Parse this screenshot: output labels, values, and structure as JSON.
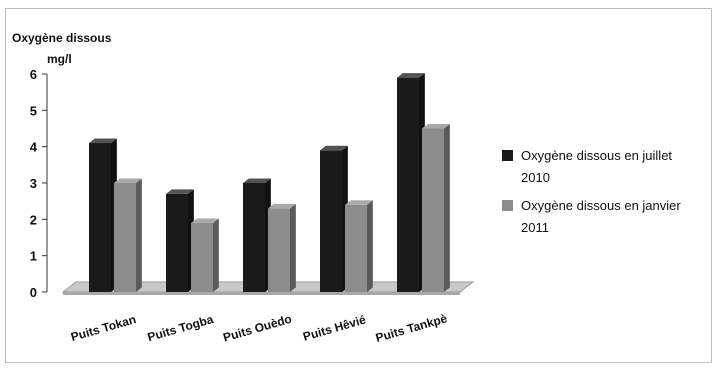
{
  "chart_data": {
    "type": "bar",
    "ylabel_lines": [
      "Oxygène dissous",
      "mg/l"
    ],
    "categories": [
      "Puits Tokan",
      "Puits Togba",
      "Puits Ouèdo",
      "Puits Hêvié",
      "Puits Tankpè"
    ],
    "series": [
      {
        "name_lines": [
          "Oxygène dissous en juillet",
          "2010"
        ],
        "values": [
          4.1,
          2.7,
          3.0,
          3.9,
          5.9
        ],
        "color": "#1a1a1a"
      },
      {
        "name_lines": [
          "Oxygène dissous en janvier",
          "2011"
        ],
        "values": [
          3.0,
          1.9,
          2.3,
          2.4,
          4.5
        ],
        "color": "#8c8c8c"
      }
    ],
    "yticks": [
      "0",
      "1",
      "2",
      "3",
      "4",
      "5",
      "6"
    ],
    "ylim": [
      0,
      6
    ],
    "grid": false,
    "legend": "right",
    "style": "3d-clustered-column"
  }
}
